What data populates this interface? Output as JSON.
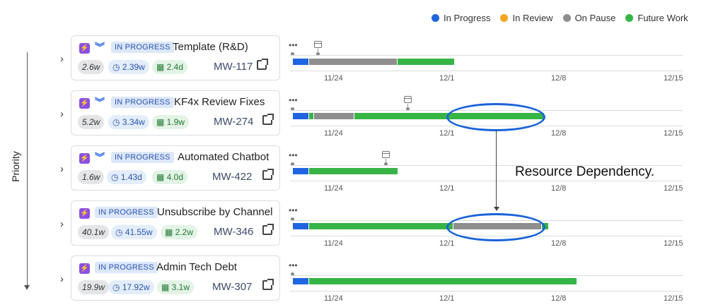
{
  "legend": [
    {
      "label": "In Progress",
      "color": "#2065e0"
    },
    {
      "label": "In Review",
      "color": "#f0a524"
    },
    {
      "label": "On Pause",
      "color": "#8e8e8e"
    },
    {
      "label": "Future Work",
      "color": "#36b546"
    }
  ],
  "axis": {
    "label": "Priority"
  },
  "timeline": {
    "ticks": [
      "11/24",
      "12/1",
      "12/8",
      "12/15"
    ],
    "more_label": "•••"
  },
  "rows": [
    {
      "status": "IN PROGRESS",
      "title": "Template (R&D)",
      "estimate": "2.6w",
      "spent": "2.39w",
      "remaining": "2.4d",
      "key": "MW-117"
    },
    {
      "status": "IN PROGRESS",
      "title": "KF4x Review Fixes",
      "estimate": "5.2w",
      "spent": "3.34w",
      "remaining": "1.9w",
      "key": "MW-274"
    },
    {
      "status": "IN PROGRESS",
      "title": "Automated Chatbot",
      "estimate": "1.6w",
      "spent": "1.43d",
      "remaining": "4.0d",
      "key": "MW-422"
    },
    {
      "status": "IN PROGRESS",
      "title": "Unsubscribe by Channel",
      "estimate": "40.1w",
      "spent": "41.55w",
      "remaining": "2.2w",
      "key": "MW-346"
    },
    {
      "status": "IN PROGRESS",
      "title": "Admin Tech Debt",
      "estimate": "19.9w",
      "spent": "17.92w",
      "remaining": "3.1w",
      "key": "MW-307"
    }
  ],
  "annotation": {
    "label": "Resource Dependency."
  },
  "icons": {
    "bolt": "bolt-icon",
    "caret": "chevron-down-icon",
    "clock": "clock-icon",
    "calendar": "calendar-icon",
    "external": "external-link-icon",
    "expand": "chevron-right-icon"
  }
}
